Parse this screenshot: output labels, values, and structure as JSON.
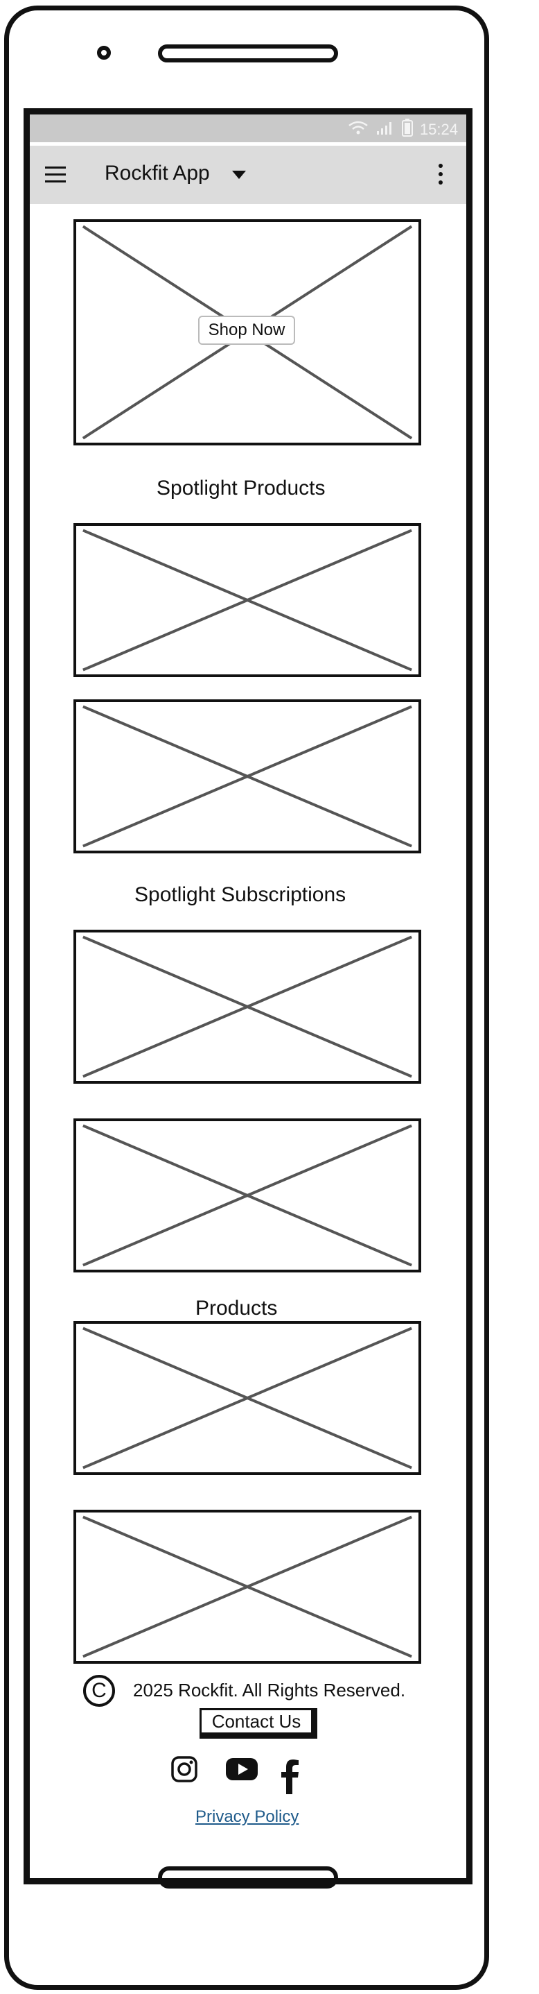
{
  "status_bar": {
    "time": "15:24",
    "wifi_icon": "wifi-icon",
    "signal_icon": "signal-icon",
    "battery_icon": "battery-icon"
  },
  "app_bar": {
    "title": "Rockfit App",
    "menu_icon": "hamburger-menu-icon",
    "dropdown_icon": "caret-down-icon",
    "more_icon": "more-vertical-icon"
  },
  "hero": {
    "button_label": "Shop Now"
  },
  "sections": {
    "spotlight_products": "Spotlight Products",
    "spotlight_subscriptions": "Spotlight Subscriptions",
    "products": "Products"
  },
  "footer": {
    "copyright_text": "2025 Rockfit. All Rights Reserved.",
    "contact_label": "Contact Us",
    "privacy_label": "Privacy Policy",
    "social_icons": [
      "instagram-icon",
      "youtube-icon",
      "facebook-icon"
    ]
  },
  "colors": {
    "status_bar_bg": "#c9c9c9",
    "app_bar_bg": "#dcdcdc",
    "link": "#1e5a8a"
  }
}
